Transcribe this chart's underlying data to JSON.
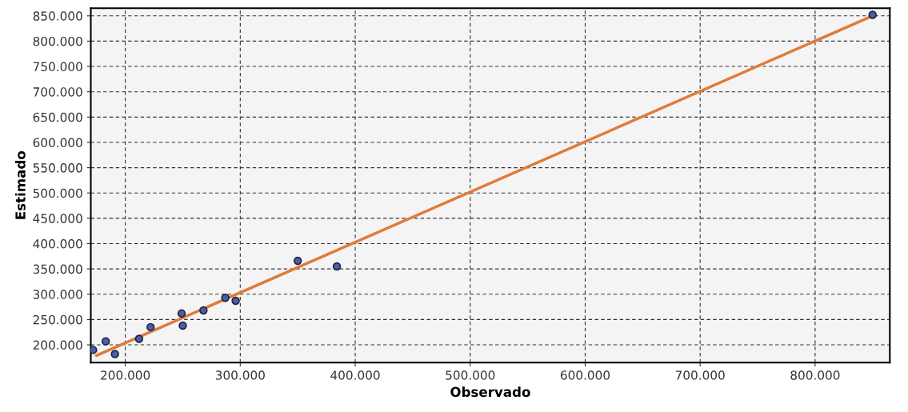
{
  "chart_data": {
    "type": "scatter",
    "xlabel": "Observado",
    "ylabel": "Estimado",
    "xlim": [
      170000,
      865000
    ],
    "ylim": [
      165000,
      865000
    ],
    "xticks": [
      {
        "value": 200000,
        "label": "200.000"
      },
      {
        "value": 300000,
        "label": "300.000"
      },
      {
        "value": 400000,
        "label": "400.000"
      },
      {
        "value": 500000,
        "label": "500.000"
      },
      {
        "value": 600000,
        "label": "600.000"
      },
      {
        "value": 700000,
        "label": "700.000"
      },
      {
        "value": 800000,
        "label": "800.000"
      }
    ],
    "yticks": [
      {
        "value": 200000,
        "label": "200.000"
      },
      {
        "value": 250000,
        "label": "250.000"
      },
      {
        "value": 300000,
        "label": "300.000"
      },
      {
        "value": 350000,
        "label": "350.000"
      },
      {
        "value": 400000,
        "label": "400.000"
      },
      {
        "value": 450000,
        "label": "450.000"
      },
      {
        "value": 500000,
        "label": "500.000"
      },
      {
        "value": 550000,
        "label": "550.000"
      },
      {
        "value": 600000,
        "label": "600.000"
      },
      {
        "value": 650000,
        "label": "650.000"
      },
      {
        "value": 700000,
        "label": "700.000"
      },
      {
        "value": 750000,
        "label": "750.000"
      },
      {
        "value": 800000,
        "label": "800.000"
      },
      {
        "value": 850000,
        "label": "850.000"
      }
    ],
    "grid": true,
    "series": [
      {
        "type": "line",
        "color": "#e07b39",
        "x": [
          175000,
          850000
        ],
        "values": [
          179000,
          850000
        ]
      },
      {
        "marker": "circle",
        "color": "#4a5fa8",
        "x": [
          172000,
          183000,
          191000,
          212000,
          222000,
          249000,
          250000,
          268000,
          287000,
          296000,
          350000,
          384000,
          850000
        ],
        "values": [
          190000,
          207000,
          182000,
          212000,
          235000,
          262000,
          238000,
          268000,
          293000,
          287000,
          366000,
          355000,
          852000
        ]
      }
    ]
  }
}
